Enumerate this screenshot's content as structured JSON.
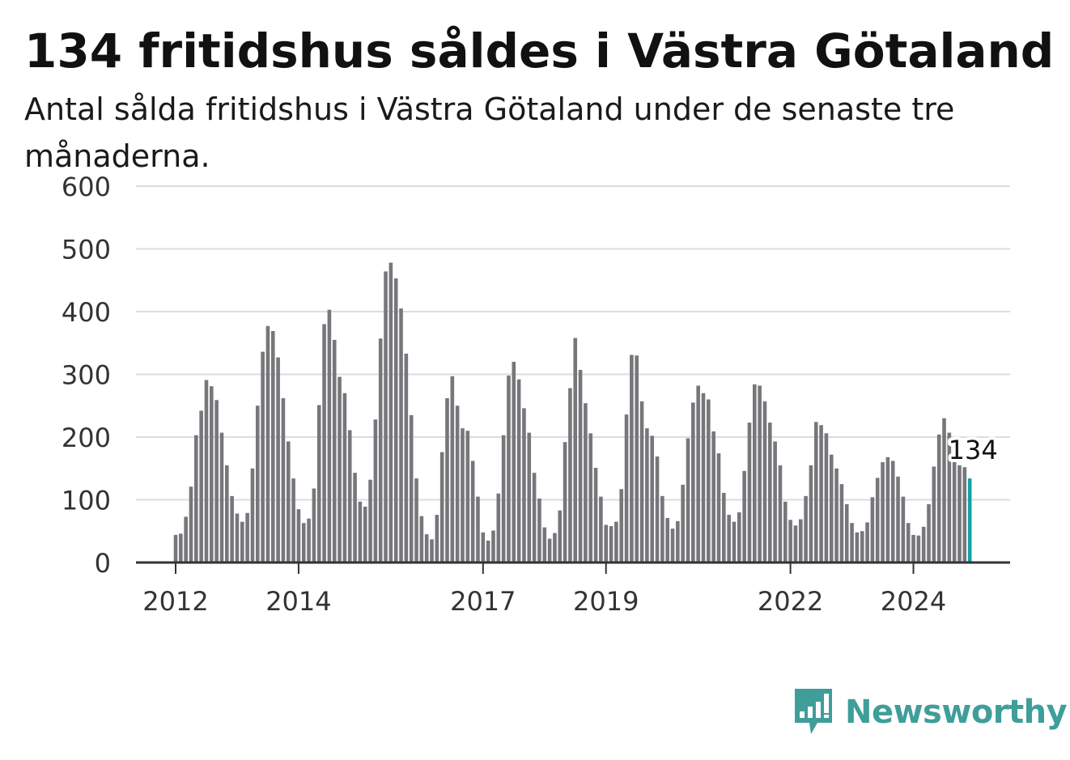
{
  "title": "134 fritidshus såldes i Västra Götaland",
  "subtitle": "Antal sålda fritidshus i Västra Götaland under de senaste tre månaderna.",
  "brand": {
    "name": "Newsworthy",
    "color": "#3f9e99",
    "icon": "newsworthy-logo-icon"
  },
  "chart_data": {
    "type": "bar",
    "x_start": "2012-01",
    "x_interval": "month",
    "ylim": [
      0,
      600
    ],
    "yticks": [
      0,
      100,
      200,
      300,
      400,
      500,
      600
    ],
    "xticks": [
      {
        "label": "2012",
        "month": "2012-01"
      },
      {
        "label": "2014",
        "month": "2014-01"
      },
      {
        "label": "2017",
        "month": "2017-01"
      },
      {
        "label": "2019",
        "month": "2019-01"
      },
      {
        "label": "2022",
        "month": "2022-01"
      },
      {
        "label": "2024",
        "month": "2024-01"
      }
    ],
    "grid": true,
    "bar_color": "#77767a",
    "highlight_color": "#14a0a4",
    "highlight_last": true,
    "last_value_label": "134",
    "values": [
      44,
      46,
      73,
      121,
      203,
      242,
      291,
      281,
      259,
      207,
      155,
      106,
      78,
      65,
      79,
      150,
      250,
      336,
      377,
      369,
      327,
      262,
      193,
      134,
      85,
      63,
      70,
      118,
      251,
      380,
      403,
      355,
      296,
      270,
      211,
      143,
      97,
      89,
      132,
      228,
      357,
      464,
      478,
      453,
      405,
      333,
      235,
      134,
      74,
      45,
      37,
      76,
      176,
      262,
      297,
      250,
      214,
      210,
      162,
      105,
      48,
      35,
      51,
      110,
      203,
      298,
      320,
      292,
      246,
      207,
      143,
      102,
      56,
      38,
      47,
      83,
      192,
      278,
      358,
      307,
      254,
      206,
      151,
      105,
      60,
      58,
      65,
      117,
      236,
      331,
      330,
      257,
      214,
      202,
      169,
      106,
      71,
      54,
      66,
      124,
      198,
      255,
      282,
      270,
      260,
      209,
      174,
      111,
      76,
      65,
      80,
      146,
      223,
      284,
      282,
      257,
      223,
      193,
      155,
      97,
      68,
      59,
      69,
      106,
      155,
      224,
      219,
      206,
      172,
      150,
      125,
      93,
      63,
      48,
      50,
      64,
      104,
      135,
      160,
      168,
      162,
      137,
      105,
      63,
      44,
      43,
      57,
      93,
      153,
      204,
      230,
      207,
      183,
      155,
      152,
      134
    ]
  }
}
